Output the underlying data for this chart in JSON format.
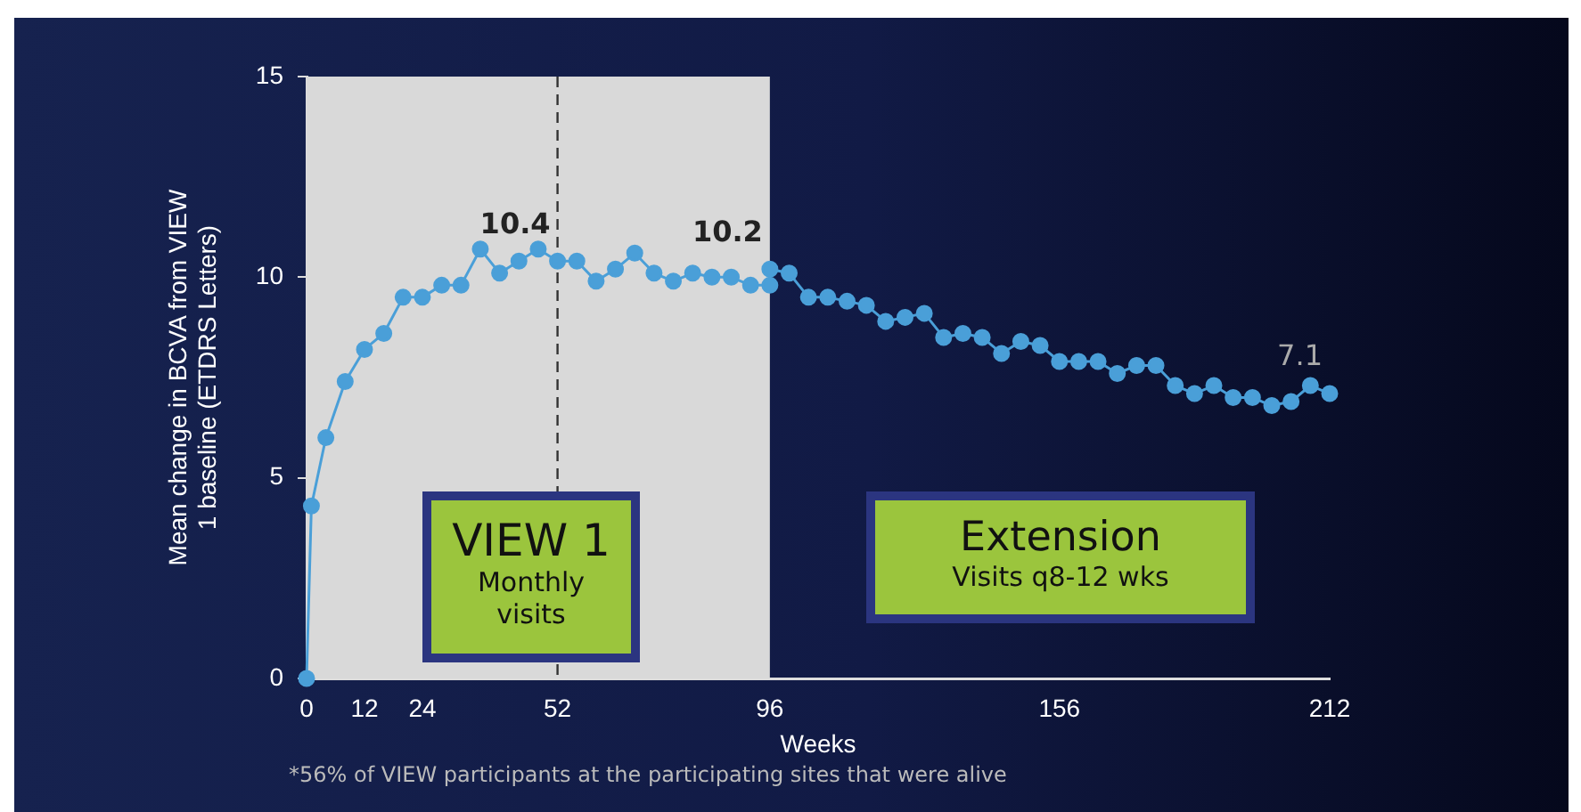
{
  "chart_data": {
    "type": "line",
    "xlabel": "Weeks",
    "ylabel": "Mean change in BCVA from VIEW 1 baseline (ETDRS Letters)",
    "x": [
      0,
      1,
      4,
      8,
      12,
      16,
      20,
      24,
      28,
      32,
      36,
      40,
      44,
      48,
      52,
      56,
      60,
      64,
      68,
      72,
      76,
      80,
      84,
      88,
      92,
      96,
      96,
      100,
      104,
      108,
      112,
      116,
      120,
      124,
      128,
      132,
      136,
      140,
      144,
      148,
      152,
      156,
      160,
      164,
      168,
      172,
      176,
      180,
      184,
      188,
      192,
      196,
      200,
      204,
      208,
      212
    ],
    "series": [
      {
        "color": "#4a9fd8",
        "values": [
          0,
          4.3,
          6.0,
          7.4,
          8.2,
          8.6,
          9.5,
          9.5,
          9.8,
          9.8,
          10.7,
          10.1,
          10.4,
          10.7,
          10.4,
          10.4,
          9.9,
          10.2,
          10.6,
          10.1,
          9.9,
          10.1,
          10.0,
          10.0,
          9.8,
          9.8,
          10.2,
          10.1,
          9.5,
          9.5,
          9.4,
          9.3,
          8.9,
          9.0,
          9.1,
          8.5,
          8.6,
          8.5,
          8.1,
          8.4,
          8.3,
          7.9,
          7.9,
          7.9,
          7.6,
          7.8,
          7.8,
          7.3,
          7.1,
          7.3,
          7.0,
          7.0,
          6.8,
          6.9,
          7.3,
          7.1
        ]
      }
    ],
    "xlim": [
      0,
      212
    ],
    "xticks": [
      0,
      12,
      24,
      52,
      96,
      156,
      212
    ],
    "ylim": [
      0,
      15
    ],
    "yticks": [
      0,
      5,
      10,
      15
    ],
    "grid": false,
    "legend": false,
    "marker": "circle",
    "line_style": "solid",
    "bands": [
      {
        "axis": "x",
        "from": 0,
        "to": 96,
        "color": "#d9d9d9"
      }
    ],
    "ref_lines": [
      {
        "axis": "x",
        "value": 52,
        "line_style": "dashed",
        "color": "#333333"
      }
    ],
    "annotations": [
      {
        "text": "10.4",
        "x": 52,
        "y": 10.4
      },
      {
        "text": "10.2",
        "x": 96,
        "y": 10.2
      },
      {
        "text": "7.1",
        "x": 212,
        "y": 7.1
      },
      "VIEW 1",
      "Monthly visits",
      "Extension",
      "Visits q8-12 wks",
      "*56% of VIEW participants at the participating  sites that were alive"
    ]
  }
}
